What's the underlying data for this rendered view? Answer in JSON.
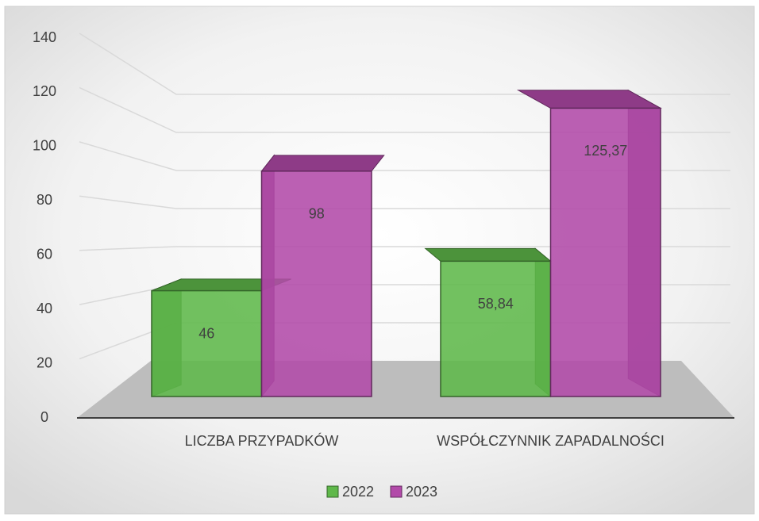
{
  "chart_data": {
    "type": "bar3d",
    "categories": [
      "LICZBA PRZYPADKÓW",
      "WSPÓŁCZYNNIK ZAPADALNOŚCI"
    ],
    "series": [
      {
        "name": "2022",
        "color": "#5fb84a",
        "values": [
          46,
          58.84
        ],
        "value_labels": [
          "46",
          "58,84"
        ]
      },
      {
        "name": "2023",
        "color": "#b24aa9",
        "values": [
          98,
          125.37
        ],
        "value_labels": [
          "98",
          "125,37"
        ]
      }
    ],
    "ylim": [
      0,
      140
    ],
    "yticks": [
      0,
      20,
      40,
      60,
      80,
      100,
      120,
      140
    ],
    "grid": true,
    "legend": "bottom"
  }
}
